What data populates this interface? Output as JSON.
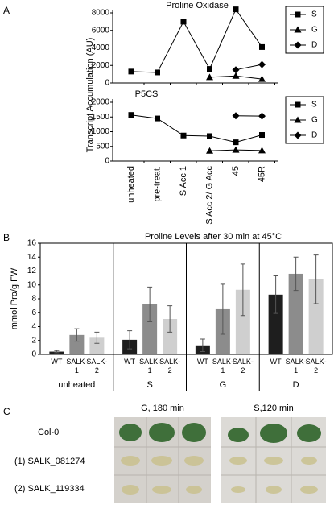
{
  "panels": [
    "A",
    "B",
    "C"
  ],
  "chart_data": [
    {
      "type": "line",
      "title": "Proline Oxidase",
      "ylabel": "Transcript Accumulation (AU)",
      "ylim": [
        0,
        8000
      ],
      "yticks": [
        0,
        2000,
        4000,
        6000,
        8000
      ],
      "series": [
        {
          "name": "S",
          "marker": "square",
          "color": "#000000",
          "values": [
            1300,
            1200,
            7000,
            1600,
            8400,
            4100
          ]
        },
        {
          "name": "G",
          "marker": "triangle",
          "color": "#000000",
          "values": [
            null,
            null,
            null,
            650,
            800,
            450
          ]
        },
        {
          "name": "D",
          "marker": "diamond",
          "color": "#000000",
          "values": [
            null,
            null,
            null,
            null,
            1500,
            2100
          ]
        }
      ]
    },
    {
      "type": "line",
      "title": "P5CS",
      "categories": [
        "unheated",
        "pre-treat.",
        "S Acc 1",
        "S Acc 2/ G Acc",
        "45",
        "45R"
      ],
      "ylim": [
        0,
        2000
      ],
      "yticks": [
        0,
        500,
        1000,
        1500,
        2000
      ],
      "series": [
        {
          "name": "S",
          "marker": "square",
          "color": "#000000",
          "values": [
            1570,
            1450,
            870,
            850,
            640,
            890
          ]
        },
        {
          "name": "G",
          "marker": "triangle",
          "color": "#000000",
          "values": [
            null,
            null,
            null,
            350,
            380,
            360
          ]
        },
        {
          "name": "D",
          "marker": "diamond",
          "color": "#000000",
          "values": [
            null,
            null,
            null,
            null,
            1540,
            1530
          ]
        }
      ]
    },
    {
      "type": "bar",
      "title": "Proline Levels after 30 min at 45°C",
      "ylabel": "mmol Pro/g FW",
      "groups": [
        "unheated",
        "S",
        "G",
        "D"
      ],
      "ylim": [
        0,
        16
      ],
      "yticks": [
        0,
        2,
        4,
        6,
        8,
        10,
        12,
        14,
        16
      ],
      "series": [
        {
          "name": "WT",
          "color": "#1e1e1e",
          "values": [
            0.4,
            2.1,
            1.3,
            8.6
          ],
          "errors": [
            0.15,
            1.3,
            0.9,
            2.7
          ]
        },
        {
          "name": "SALK-1",
          "color": "#8c8c8c",
          "values": [
            2.8,
            7.2,
            6.5,
            11.6
          ],
          "errors": [
            0.9,
            2.5,
            3.6,
            2.4
          ]
        },
        {
          "name": "SALK-2",
          "color": "#cfcfcf",
          "values": [
            2.4,
            5.1,
            9.3,
            10.8
          ],
          "errors": [
            0.8,
            1.9,
            3.7,
            3.5
          ]
        }
      ]
    }
  ],
  "photo": {
    "columns": [
      "G, 180 min",
      "S,120 min"
    ],
    "rows": [
      "Col-0",
      "(1) SALK_081274",
      "(2) SALK_119334"
    ]
  }
}
